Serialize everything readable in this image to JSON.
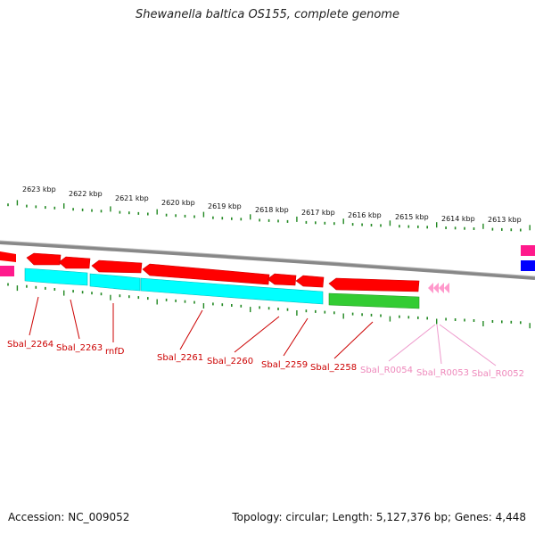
{
  "title": "Shewanella baltica OS155, complete genome",
  "accession": "Accession: NC_009052",
  "summary": "Topology: circular; Length: 5,127,376 bp; Genes: 4,448",
  "colors": {
    "forward_gene": "#ff0000",
    "cds": "#00ffff",
    "rna_gene": "#33cc33",
    "rna_feature": "#ff99cc",
    "label_gene": "#cc0000",
    "label_rna": "#ee88bb",
    "tick": "#228822",
    "backbone": "#888888"
  },
  "scale_labels": [
    "2623 kbp",
    "2622 kbp",
    "2621 kbp",
    "2620 kbp",
    "2619 kbp",
    "2618 kbp",
    "2617 kbp",
    "2616 kbp",
    "2615 kbp",
    "2614 kbp",
    "2613 kbp"
  ],
  "gene_labels": [
    "Sbal_2264",
    "Sbal_2263",
    "rnfD",
    "Sbal_2261",
    "Sbal_2260",
    "Sbal_2259",
    "Sbal_2258",
    "Sbal_R0054",
    "Sbal_R0053",
    "Sbal_R0052"
  ]
}
